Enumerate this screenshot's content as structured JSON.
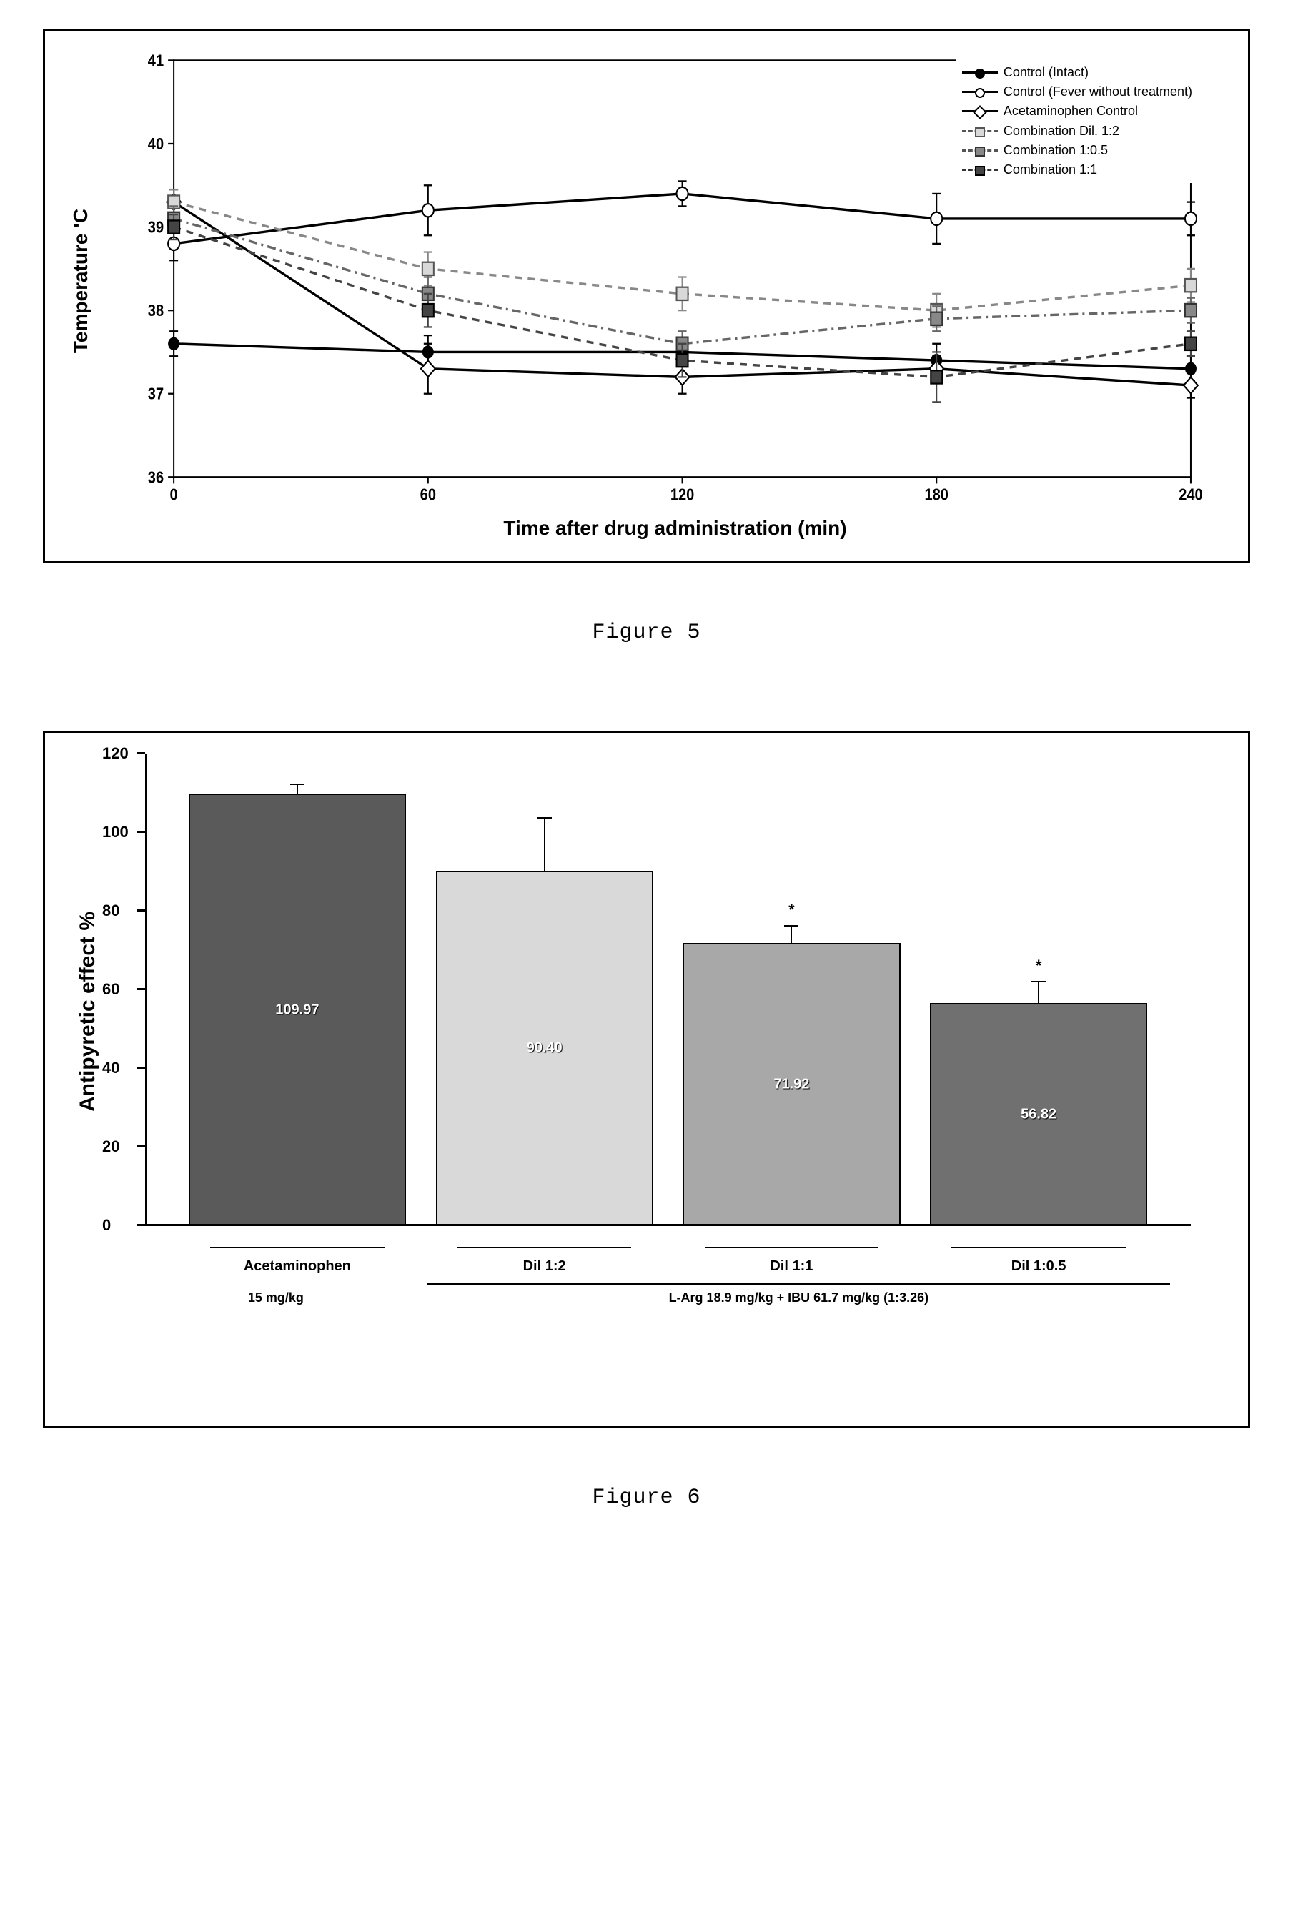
{
  "figure5": {
    "caption": "Figure 5",
    "type": "line",
    "x_label": "Time after drug administration (min)",
    "y_label": "Temperature 'C",
    "x_label_fontsize": 28,
    "y_label_fontsize": 28,
    "axis_label_fontweight": "bold",
    "tick_fontsize": 20,
    "x_ticks": [
      0,
      60,
      120,
      180,
      240
    ],
    "y_ticks": [
      36,
      37,
      38,
      39,
      40,
      41
    ],
    "xlim": [
      0,
      240
    ],
    "ylim": [
      36,
      41
    ],
    "background_color": "#ffffff",
    "border_color": "#000000",
    "legend": {
      "position": "top-right",
      "fontsize": 18,
      "items": [
        {
          "label": "Control (Intact)",
          "line_style": "solid",
          "marker": "circle-filled",
          "color": "#000000"
        },
        {
          "label": "Control (Fever without treatment)",
          "line_style": "solid",
          "marker": "circle-open",
          "color": "#000000"
        },
        {
          "label": "Acetaminophen Control",
          "line_style": "solid",
          "marker": "diamond-open",
          "color": "#000000"
        },
        {
          "label": "Combination Dil. 1:2",
          "line_style": "dashed",
          "marker": "square-light",
          "color": "#555555"
        },
        {
          "label": "Combination 1:0.5",
          "line_style": "dash-dot",
          "marker": "square-med",
          "color": "#555555"
        },
        {
          "label": "Combination 1:1",
          "line_style": "dashed",
          "marker": "square-dark",
          "color": "#333333"
        }
      ]
    },
    "series": [
      {
        "name": "Control (Intact)",
        "x": [
          0,
          60,
          120,
          180,
          240
        ],
        "y": [
          37.6,
          37.5,
          37.5,
          37.4,
          37.3
        ],
        "err": [
          0.15,
          0.2,
          0.15,
          0.2,
          0.15
        ],
        "line_style": "solid",
        "color": "#000000",
        "marker": "circle-filled"
      },
      {
        "name": "Control (Fever without treatment)",
        "x": [
          0,
          60,
          120,
          180,
          240
        ],
        "y": [
          38.8,
          39.2,
          39.4,
          39.1,
          39.1
        ],
        "err": [
          0.2,
          0.3,
          0.15,
          0.3,
          0.2
        ],
        "line_style": "solid",
        "color": "#000000",
        "marker": "circle-open"
      },
      {
        "name": "Acetaminophen Control",
        "x": [
          0,
          60,
          120,
          180,
          240
        ],
        "y": [
          39.3,
          37.3,
          37.2,
          37.3,
          37.1
        ],
        "err": [
          0.15,
          0.3,
          0.2,
          0.15,
          0.15
        ],
        "line_style": "solid",
        "color": "#000000",
        "marker": "diamond-open"
      },
      {
        "name": "Combination Dil. 1:2",
        "x": [
          0,
          60,
          120,
          180,
          240
        ],
        "y": [
          39.3,
          38.5,
          38.2,
          38.0,
          38.3
        ],
        "err": [
          0.15,
          0.2,
          0.2,
          0.2,
          0.2
        ],
        "line_style": "dashed",
        "color": "#888888",
        "marker": "square-light"
      },
      {
        "name": "Combination 1:0.5",
        "x": [
          0,
          60,
          120,
          180,
          240
        ],
        "y": [
          39.1,
          38.2,
          37.6,
          37.9,
          38.0
        ],
        "err": [
          0.15,
          0.2,
          0.15,
          0.15,
          0.15
        ],
        "line_style": "dash-dot",
        "color": "#666666",
        "marker": "square-med"
      },
      {
        "name": "Combination 1:1",
        "x": [
          0,
          60,
          120,
          180,
          240
        ],
        "y": [
          39.0,
          38.0,
          37.4,
          37.2,
          37.6
        ],
        "err": [
          0.15,
          0.2,
          0.2,
          0.3,
          0.15
        ],
        "line_style": "dashed",
        "color": "#444444",
        "marker": "square-dark"
      }
    ]
  },
  "figure6": {
    "caption": "Figure 6",
    "type": "bar",
    "y_label": "Antipyretic effect %",
    "y_label_fontsize": 30,
    "y_label_fontweight": "bold",
    "tick_fontsize": 22,
    "y_ticks": [
      0,
      20,
      40,
      60,
      80,
      100,
      120
    ],
    "ylim": [
      0,
      120
    ],
    "background_color": "#ffffff",
    "border_color": "#000000",
    "significance_marker": "*",
    "bars": [
      {
        "label": "Acetaminophen",
        "sublabel": "15 mg/kg",
        "value": 109.97,
        "value_text": "109.97",
        "error": 3,
        "color": "#5a5a5a",
        "sig": false
      },
      {
        "label": "Dil 1:2",
        "sublabel": "",
        "value": 90.4,
        "value_text": "90.40",
        "error": 14,
        "color": "#d9d9d9",
        "sig": false
      },
      {
        "label": "Dil 1:1",
        "sublabel": "",
        "value": 71.92,
        "value_text": "71.92",
        "error": 5,
        "color": "#a8a8a8",
        "sig": true
      },
      {
        "label": "Dil 1:0.5",
        "sublabel": "",
        "value": 56.82,
        "value_text": "56.82",
        "error": 6,
        "color": "#707070",
        "sig": true
      }
    ],
    "group_line_label": "L-Arg 18.9 mg/kg + IBU 61.7 mg/kg (1:3.26)"
  }
}
